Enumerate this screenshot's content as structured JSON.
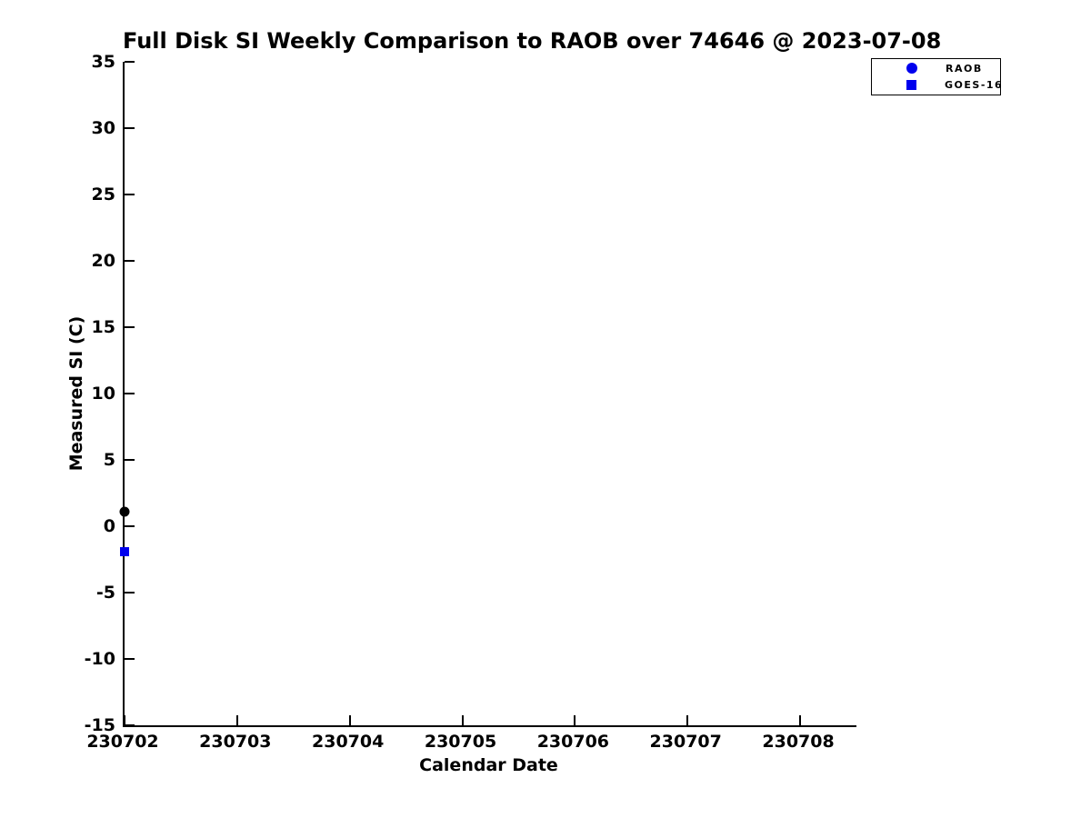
{
  "chart_data": {
    "type": "scatter",
    "title": "Full Disk SI Weekly Comparison to RAOB over 74646 @ 2023-07-08",
    "xlabel": "Calendar Date",
    "ylabel": "Measured SI (C)",
    "x_tick_values": [
      230702,
      230703,
      230704,
      230705,
      230706,
      230707,
      230708
    ],
    "x_tick_labels": [
      "230702",
      "230703",
      "230704",
      "230705",
      "230706",
      "230707",
      "230708"
    ],
    "xlim": [
      230702,
      230708.5
    ],
    "y_ticks": [
      35,
      30,
      25,
      20,
      15,
      10,
      5,
      0,
      -5,
      -10,
      -15
    ],
    "ylim": [
      -15,
      35
    ],
    "grid": false,
    "background_color": "#ffffff",
    "axis_color": "#000000",
    "legend": {
      "position": "outside-upper-right",
      "border_color": "#000000",
      "entries": [
        {
          "label": "RAOB",
          "marker": "circle",
          "color": "#0000EE"
        },
        {
          "label": "GOES-16",
          "marker": "square",
          "color": "#0000EE"
        }
      ]
    },
    "series": [
      {
        "name": "RAOB",
        "marker": "circle",
        "color": "#000000",
        "points": [
          {
            "x": 230702,
            "y": 1.1
          }
        ]
      },
      {
        "name": "GOES-16",
        "marker": "square",
        "color": "#0000EE",
        "points": [
          {
            "x": 230702,
            "y": -1.9
          }
        ]
      }
    ]
  }
}
